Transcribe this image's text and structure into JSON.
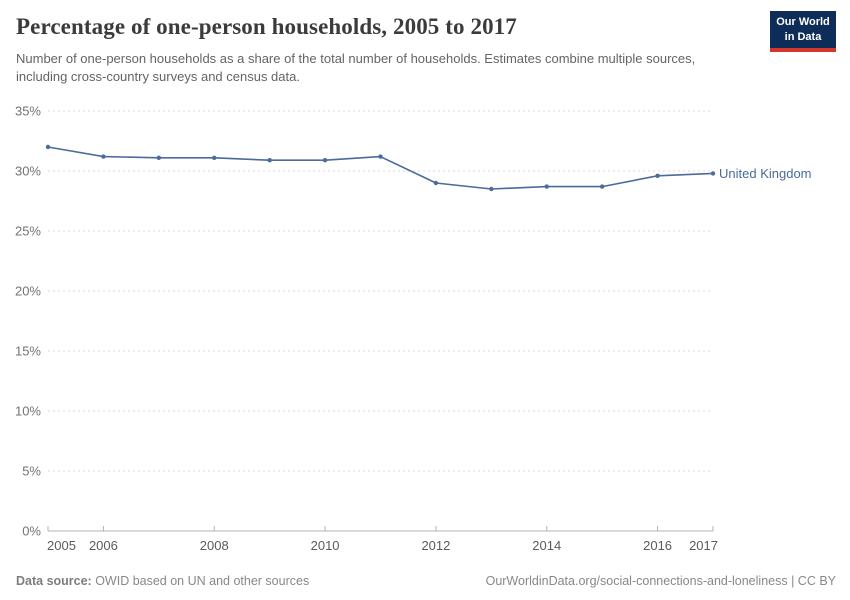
{
  "header": {
    "title": "Percentage of one-person households, 2005 to 2017",
    "subtitle": "Number of one-person households as a share of the total number of households. Estimates combine multiple sources, including cross-country surveys and census data.",
    "logo": {
      "line1": "Our World",
      "line2": "in Data",
      "bg_color": "#0d2d58",
      "stripe_color": "#d3372c"
    }
  },
  "chart_data": {
    "type": "line",
    "title": "Percentage of one-person households, 2005 to 2017",
    "xlabel": "",
    "ylabel": "",
    "x": [
      2005,
      2006,
      2007,
      2008,
      2009,
      2010,
      2011,
      2012,
      2013,
      2014,
      2015,
      2016,
      2017
    ],
    "series": [
      {
        "name": "United Kingdom",
        "color": "#4c6a9c",
        "values": [
          32.0,
          31.2,
          31.1,
          31.1,
          30.9,
          30.9,
          31.2,
          29.0,
          28.5,
          28.7,
          28.7,
          29.6,
          29.8
        ]
      }
    ],
    "ylim": [
      0,
      35
    ],
    "yticks": [
      0,
      5,
      10,
      15,
      20,
      25,
      30,
      35
    ],
    "ytick_suffix": "%",
    "xticks": [
      2005,
      2006,
      2008,
      2010,
      2012,
      2014,
      2016,
      2017
    ],
    "grid": "horizontal-dashed",
    "legend_position": "end-of-line-label",
    "grid_color": "#dadada",
    "axis_color": "#b3b3b3",
    "ytick_label_color": "#737373",
    "xtick_label_color": "#5b5b5b"
  },
  "footer": {
    "source_label": "Data source:",
    "source_text": " OWID based on UN and other sources",
    "attribution": "OurWorldinData.org/social-connections-and-loneliness | CC BY"
  }
}
